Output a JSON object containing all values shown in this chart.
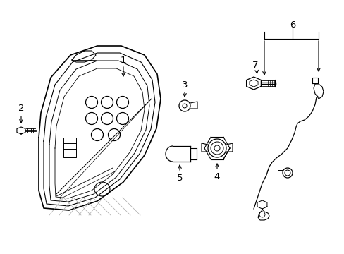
{
  "bg_color": "#ffffff",
  "line_color": "#000000",
  "figsize": [
    4.89,
    3.6
  ],
  "dpi": 100,
  "lamp_outer": [
    [
      55,
      55,
      58,
      70,
      100,
      135,
      170,
      200,
      215,
      220,
      215,
      195,
      165,
      130,
      90,
      60,
      55
    ],
    [
      200,
      240,
      280,
      305,
      318,
      322,
      315,
      295,
      270,
      235,
      195,
      158,
      120,
      95,
      82,
      82,
      200
    ]
  ],
  "lamp_inner1": [
    [
      65,
      67,
      72,
      90,
      120,
      152,
      183,
      205,
      213,
      210,
      198,
      175,
      145,
      115,
      88,
      68,
      65
    ],
    [
      205,
      240,
      275,
      298,
      309,
      313,
      307,
      290,
      267,
      235,
      198,
      162,
      125,
      100,
      87,
      87,
      205
    ]
  ],
  "lamp_inner2": [
    [
      73,
      75,
      80,
      97,
      125,
      155,
      183,
      202,
      208,
      206,
      195,
      173,
      145,
      118,
      95,
      76,
      73
    ],
    [
      210,
      242,
      272,
      293,
      303,
      307,
      301,
      285,
      264,
      235,
      200,
      165,
      130,
      107,
      93,
      92,
      210
    ]
  ],
  "lamp_inner3": [
    [
      82,
      83,
      88,
      103,
      128,
      155,
      180,
      198,
      203,
      200,
      191,
      170,
      143,
      120,
      100,
      84,
      82
    ],
    [
      215,
      243,
      268,
      288,
      298,
      301,
      296,
      281,
      260,
      235,
      202,
      168,
      134,
      113,
      98,
      97,
      215
    ]
  ]
}
